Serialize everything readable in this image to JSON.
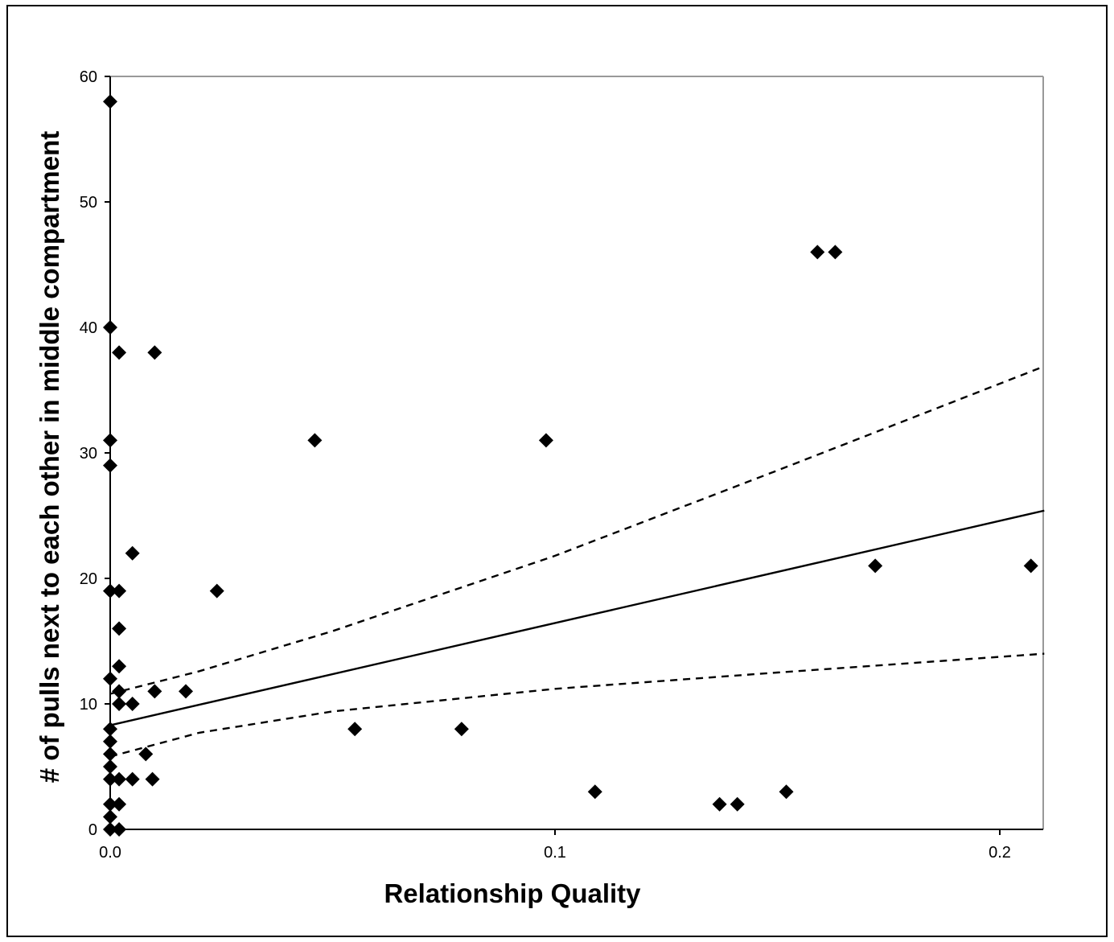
{
  "chart_data": {
    "type": "scatter",
    "title": "",
    "xlabel": "Relationship Quality",
    "ylabel": "# of pulls next to each other in middle compartment",
    "xlim": [
      0,
      0.21
    ],
    "ylim": [
      0,
      60
    ],
    "x_ticks": [
      0.0,
      0.1,
      0.2
    ],
    "x_tick_labels": [
      "0.0",
      "0.1",
      "0.2"
    ],
    "y_ticks": [
      0,
      10,
      20,
      30,
      40,
      50,
      60
    ],
    "y_tick_labels": [
      "0",
      "10",
      "20",
      "30",
      "40",
      "50",
      "60"
    ],
    "grid": false,
    "legend": "none",
    "series": [
      {
        "points": [
          {
            "x": 0.0,
            "y": 58
          },
          {
            "x": 0.0,
            "y": 40
          },
          {
            "x": 0.0,
            "y": 31
          },
          {
            "x": 0.0,
            "y": 29
          },
          {
            "x": 0.0,
            "y": 19
          },
          {
            "x": 0.0,
            "y": 12
          },
          {
            "x": 0.0,
            "y": 8
          },
          {
            "x": 0.0,
            "y": 7
          },
          {
            "x": 0.0,
            "y": 6
          },
          {
            "x": 0.0,
            "y": 5
          },
          {
            "x": 0.0,
            "y": 4
          },
          {
            "x": 0.0,
            "y": 2
          },
          {
            "x": 0.0,
            "y": 1
          },
          {
            "x": 0.0,
            "y": 0
          },
          {
            "x": 0.002,
            "y": 38
          },
          {
            "x": 0.002,
            "y": 19
          },
          {
            "x": 0.002,
            "y": 16
          },
          {
            "x": 0.002,
            "y": 13
          },
          {
            "x": 0.002,
            "y": 11
          },
          {
            "x": 0.002,
            "y": 10
          },
          {
            "x": 0.002,
            "y": 4
          },
          {
            "x": 0.002,
            "y": 2
          },
          {
            "x": 0.002,
            "y": 0
          },
          {
            "x": 0.005,
            "y": 22
          },
          {
            "x": 0.005,
            "y": 10
          },
          {
            "x": 0.005,
            "y": 4
          },
          {
            "x": 0.008,
            "y": 6
          },
          {
            "x": 0.0095,
            "y": 4
          },
          {
            "x": 0.01,
            "y": 38
          },
          {
            "x": 0.01,
            "y": 11
          },
          {
            "x": 0.017,
            "y": 11
          },
          {
            "x": 0.024,
            "y": 19
          },
          {
            "x": 0.046,
            "y": 31
          },
          {
            "x": 0.055,
            "y": 8
          },
          {
            "x": 0.079,
            "y": 8
          },
          {
            "x": 0.098,
            "y": 31
          },
          {
            "x": 0.109,
            "y": 3
          },
          {
            "x": 0.137,
            "y": 2
          },
          {
            "x": 0.141,
            "y": 2
          },
          {
            "x": 0.152,
            "y": 3
          },
          {
            "x": 0.159,
            "y": 46
          },
          {
            "x": 0.163,
            "y": 46
          },
          {
            "x": 0.172,
            "y": 21
          },
          {
            "x": 0.207,
            "y": 21
          }
        ]
      }
    ],
    "fit_line": {
      "x": [
        0.0,
        0.21
      ],
      "y": [
        8.3,
        25.4
      ]
    },
    "confidence_upper": {
      "x": [
        0.0,
        0.02,
        0.05,
        0.1,
        0.15,
        0.21
      ],
      "y": [
        10.8,
        12.6,
        15.8,
        21.8,
        28.6,
        36.9
      ]
    },
    "confidence_lower": {
      "x": [
        0.0,
        0.02,
        0.05,
        0.1,
        0.15,
        0.21
      ],
      "y": [
        5.8,
        7.7,
        9.4,
        11.2,
        12.5,
        14.0
      ]
    },
    "colors": {
      "marker": "#000000",
      "axis": "#000000",
      "plot_border": "#999999"
    }
  }
}
